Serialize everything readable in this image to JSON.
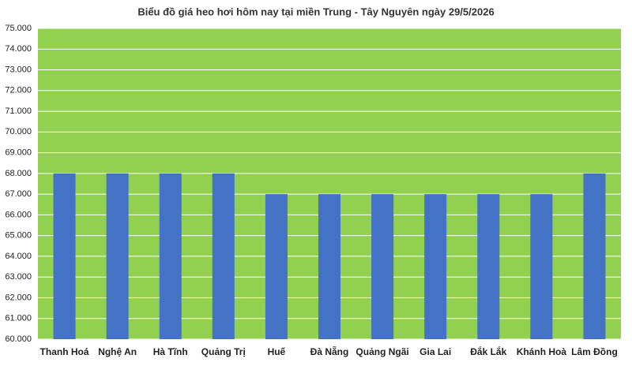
{
  "chart_data": {
    "type": "bar",
    "title": "Biểu đồ giá heo hơi hôm nay tại miền Trung - Tây Nguyên ngày 29/5/2026",
    "categories": [
      "Thanh Hoá",
      "Nghệ An",
      "Hà Tĩnh",
      "Quảng Trị",
      "Huế",
      "Đà Nẵng",
      "Quảng Ngãi",
      "Gia Lai",
      "Đắk Lắk",
      "Khánh Hoà",
      "Lâm Đồng"
    ],
    "values": [
      68000,
      68000,
      68000,
      68000,
      67000,
      67000,
      67000,
      67000,
      67000,
      67000,
      68000
    ],
    "color": "#4472c4",
    "plot_background": "#92d050",
    "ylim": [
      60000,
      75000
    ],
    "yticks": [
      {
        "value": 60000,
        "label": "60.000"
      },
      {
        "value": 61000,
        "label": "61.000"
      },
      {
        "value": 62000,
        "label": "62.000"
      },
      {
        "value": 63000,
        "label": "63.000"
      },
      {
        "value": 64000,
        "label": "64.000"
      },
      {
        "value": 65000,
        "label": "65.000"
      },
      {
        "value": 66000,
        "label": "66.000"
      },
      {
        "value": 67000,
        "label": "67.000"
      },
      {
        "value": 68000,
        "label": "68.000"
      },
      {
        "value": 69000,
        "label": "69.000"
      },
      {
        "value": 70000,
        "label": "70.000"
      },
      {
        "value": 71000,
        "label": "71.000"
      },
      {
        "value": 72000,
        "label": "72.000"
      },
      {
        "value": 73000,
        "label": "73.000"
      },
      {
        "value": 74000,
        "label": "74.000"
      },
      {
        "value": 75000,
        "label": "75.000"
      }
    ],
    "grid": true
  }
}
